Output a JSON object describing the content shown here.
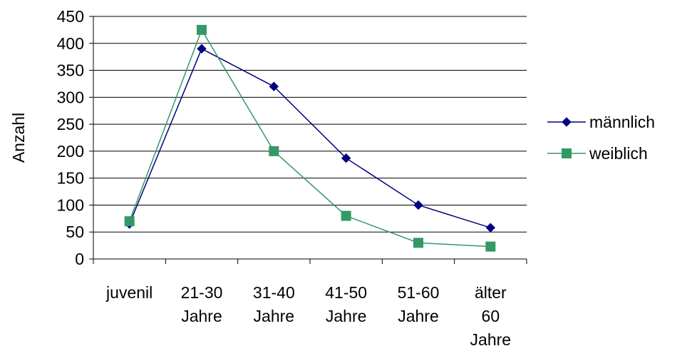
{
  "chart_data": {
    "type": "line",
    "title": "",
    "xlabel": "",
    "ylabel": "Anzahl",
    "ylim": [
      0,
      450
    ],
    "yticks": [
      0,
      50,
      100,
      150,
      200,
      250,
      300,
      350,
      400,
      450
    ],
    "grid": true,
    "legend_position": "right",
    "categories": [
      [
        "juvenil"
      ],
      [
        "21-30",
        "Jahre"
      ],
      [
        "31-40",
        "Jahre"
      ],
      [
        "41-50",
        "Jahre"
      ],
      [
        "51-60",
        "Jahre"
      ],
      [
        "älter",
        "60",
        "Jahre"
      ]
    ],
    "series": [
      {
        "name": "männlich",
        "color": "#000080",
        "marker": "diamond",
        "values": [
          65,
          390,
          320,
          187,
          100,
          58
        ]
      },
      {
        "name": "weiblich",
        "color": "#339966",
        "marker": "square",
        "values": [
          70,
          425,
          200,
          80,
          30,
          23
        ]
      }
    ]
  }
}
